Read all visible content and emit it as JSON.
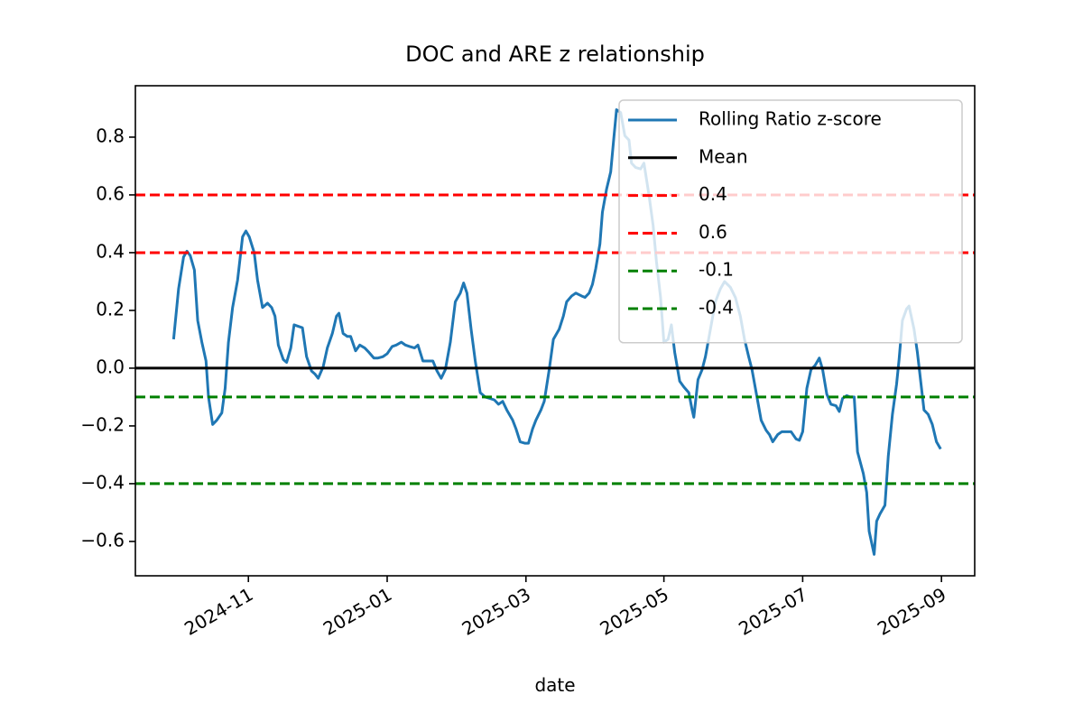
{
  "chart_data": {
    "type": "line",
    "title": "DOC and ARE z relationship",
    "xlabel": "date",
    "x": [
      2024.743,
      2024.749,
      2024.755,
      2024.759,
      2024.763,
      2024.768,
      2024.772,
      2024.777,
      2024.782,
      2024.785,
      2024.79,
      2024.795,
      2024.801,
      2024.805,
      2024.809,
      2024.814,
      2024.82,
      2024.826,
      2024.83,
      2024.834,
      2024.84,
      2024.844,
      2024.85,
      2024.856,
      2024.861,
      2024.865,
      2024.869,
      2024.875,
      2024.879,
      2024.884,
      2024.888,
      2024.893,
      2024.898,
      2024.903,
      2024.909,
      2024.913,
      2024.917,
      2024.923,
      2024.928,
      2024.934,
      2024.939,
      2024.942,
      2024.947,
      2024.952,
      2024.956,
      2024.962,
      2024.967,
      2024.973,
      2024.978,
      2024.984,
      2024.989,
      2024.995,
      2025.0,
      2025.006,
      2025.011,
      2025.017,
      2025.022,
      2025.027,
      2025.033,
      2025.037,
      2025.043,
      2025.048,
      2025.055,
      2025.06,
      2025.065,
      2025.07,
      2025.076,
      2025.082,
      2025.088,
      2025.092,
      2025.096,
      2025.101,
      2025.106,
      2025.112,
      2025.118,
      2025.124,
      2025.129,
      2025.134,
      2025.139,
      2025.144,
      2025.151,
      2025.155,
      2025.16,
      2025.166,
      2025.17,
      2025.175,
      2025.179,
      2025.185,
      2025.189,
      2025.195,
      2025.2,
      2025.207,
      2025.212,
      2025.216,
      2025.222,
      2025.227,
      2025.234,
      2025.238,
      2025.243,
      2025.247,
      2025.251,
      2025.256,
      2025.259,
      2025.264,
      2025.269,
      2025.273,
      2025.276,
      2025.281,
      2025.286,
      2025.291,
      2025.294,
      2025.299,
      2025.305,
      2025.309,
      2025.315,
      2025.32,
      2025.324,
      2025.329,
      2025.333,
      2025.338,
      2025.342,
      2025.346,
      2025.352,
      2025.357,
      2025.363,
      2025.367,
      2025.369,
      2025.374,
      2025.379,
      2025.383,
      2025.389,
      2025.395,
      2025.401,
      2025.406,
      2025.413,
      2025.419,
      2025.425,
      2025.43,
      2025.435,
      2025.439,
      2025.445,
      2025.45,
      2025.456,
      2025.46,
      2025.464,
      2025.47,
      2025.475,
      2025.481,
      2025.486,
      2025.492,
      2025.496,
      2025.5,
      2025.505,
      2025.51,
      2025.515,
      2025.52,
      2025.524,
      2025.529,
      2025.534,
      2025.54,
      2025.544,
      2025.548,
      2025.553,
      2025.557,
      2025.562,
      2025.566,
      2025.573,
      2025.577,
      2025.58,
      2025.586,
      2025.589,
      2025.593,
      2025.599,
      2025.603,
      2025.608,
      2025.613,
      2025.616,
      2025.62,
      2025.625,
      2025.628,
      2025.634,
      2025.638,
      2025.642,
      2025.646,
      2025.651,
      2025.656,
      2025.661,
      2025.666
    ],
    "series": [
      {
        "name": "Rolling Ratio z-score",
        "color": "#1f77b4",
        "values": [
          0.1,
          0.275,
          0.385,
          0.405,
          0.39,
          0.34,
          0.165,
          0.09,
          0.025,
          -0.1,
          -0.195,
          -0.18,
          -0.155,
          -0.07,
          0.09,
          0.21,
          0.305,
          0.455,
          0.475,
          0.455,
          0.4,
          0.305,
          0.21,
          0.225,
          0.21,
          0.18,
          0.08,
          0.03,
          0.02,
          0.07,
          0.15,
          0.145,
          0.14,
          0.04,
          -0.01,
          -0.02,
          -0.035,
          0.005,
          0.07,
          0.12,
          0.18,
          0.19,
          0.12,
          0.11,
          0.11,
          0.06,
          0.08,
          0.07,
          0.055,
          0.035,
          0.035,
          0.04,
          0.05,
          0.075,
          0.08,
          0.09,
          0.08,
          0.075,
          0.07,
          0.08,
          0.025,
          0.025,
          0.025,
          -0.01,
          -0.035,
          -0.005,
          0.09,
          0.23,
          0.26,
          0.295,
          0.26,
          0.135,
          0.025,
          -0.085,
          -0.1,
          -0.105,
          -0.11,
          -0.125,
          -0.115,
          -0.145,
          -0.18,
          -0.21,
          -0.255,
          -0.26,
          -0.26,
          -0.21,
          -0.18,
          -0.145,
          -0.115,
          -0.005,
          0.1,
          0.135,
          0.18,
          0.23,
          0.25,
          0.26,
          0.25,
          0.245,
          0.26,
          0.29,
          0.345,
          0.43,
          0.54,
          0.62,
          0.68,
          0.805,
          0.895,
          0.885,
          0.805,
          0.79,
          0.71,
          0.695,
          0.69,
          0.71,
          0.6,
          0.495,
          0.37,
          0.245,
          0.09,
          0.1,
          0.15,
          0.055,
          -0.045,
          -0.065,
          -0.085,
          -0.145,
          -0.17,
          -0.04,
          -0.005,
          0.04,
          0.135,
          0.23,
          0.275,
          0.3,
          0.28,
          0.245,
          0.18,
          0.1,
          0.04,
          -0.005,
          -0.1,
          -0.18,
          -0.215,
          -0.23,
          -0.255,
          -0.23,
          -0.22,
          -0.22,
          -0.22,
          -0.245,
          -0.25,
          -0.22,
          -0.07,
          -0.005,
          0.01,
          0.035,
          -0.005,
          -0.09,
          -0.125,
          -0.13,
          -0.15,
          -0.105,
          -0.095,
          -0.1,
          -0.1,
          -0.29,
          -0.365,
          -0.43,
          -0.565,
          -0.645,
          -0.53,
          -0.505,
          -0.475,
          -0.305,
          -0.16,
          -0.055,
          0.03,
          0.165,
          0.205,
          0.215,
          0.135,
          0.055,
          -0.045,
          -0.145,
          -0.16,
          -0.195,
          -0.255,
          -0.28
        ]
      }
    ],
    "hlines": [
      {
        "name": "Mean",
        "value": 0,
        "color": "#000000",
        "dashed": false
      },
      {
        "name": "0.4",
        "value": 0.4,
        "color": "#ff0000",
        "dashed": true
      },
      {
        "name": "0.6",
        "value": 0.6,
        "color": "#ff0000",
        "dashed": true
      },
      {
        "name": "-0.1",
        "value": -0.1,
        "color": "#008000",
        "dashed": true
      },
      {
        "name": "-0.4",
        "value": -0.4,
        "color": "#008000",
        "dashed": true
      }
    ],
    "xlim": [
      2024.697,
      2025.707
    ],
    "ylim": [
      -0.719,
      0.978
    ],
    "xticks": [
      {
        "value": 2024.833,
        "label": "2024-11"
      },
      {
        "value": 2025.0,
        "label": "2025-01"
      },
      {
        "value": 2025.167,
        "label": "2025-03"
      },
      {
        "value": 2025.333,
        "label": "2025-05"
      },
      {
        "value": 2025.5,
        "label": "2025-07"
      },
      {
        "value": 2025.667,
        "label": "2025-09"
      }
    ],
    "yticks": [
      {
        "value": -0.6,
        "label": "−0.6"
      },
      {
        "value": -0.4,
        "label": "−0.4"
      },
      {
        "value": -0.2,
        "label": "−0.2"
      },
      {
        "value": 0,
        "label": "0.0"
      },
      0.2,
      0.4,
      0.6,
      0.8
    ],
    "legend": "upper right"
  }
}
